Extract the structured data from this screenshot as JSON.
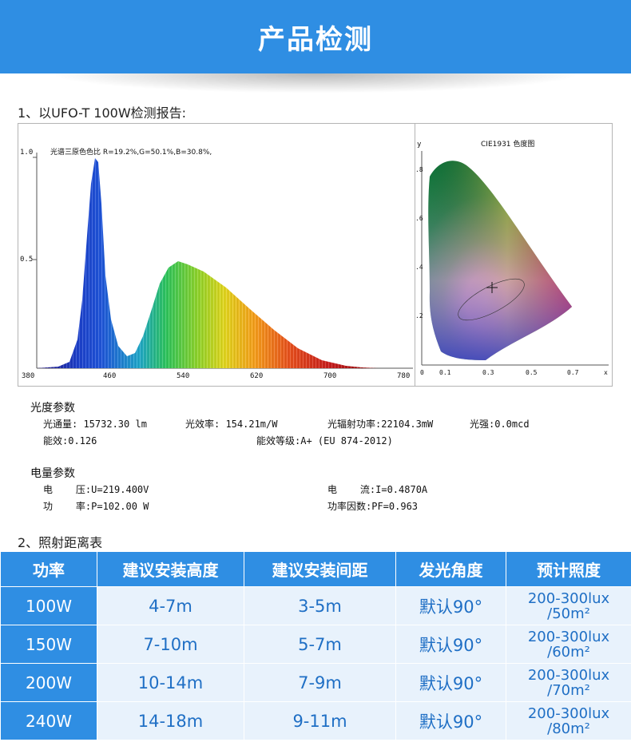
{
  "banner": {
    "title": "产品检测"
  },
  "section1": {
    "title": "1、以UFO-T 100W检测报告:"
  },
  "spectrum": {
    "ytick_1": "1.0",
    "ytick_05": "0.5",
    "header": "光谱三原色色比  R=19.2%,G=50.1%,B=30.8%,",
    "xticks": [
      "380",
      "460",
      "540",
      "620",
      "700",
      "780"
    ]
  },
  "cie": {
    "title": "CIE1931 色度图",
    "y_axis": "y",
    "x_axis": "x",
    "yticks": [
      ".8",
      ".6",
      ".4",
      ".2"
    ],
    "xticks": [
      "0",
      "0.1",
      "0.3",
      "0.5",
      "0.7"
    ]
  },
  "photometric": {
    "heading": "光度参数",
    "luminous_flux": "光通量: 15732.30 lm",
    "efficacy": "光效率: 154.21m/W",
    "radiant_power": "光辐射功率:22104.3mW",
    "intensity": "光强:0.0mcd",
    "energy_efficiency": "能效:0.126",
    "efficiency_grade": "能效等级:A+ (EU 874-2012)"
  },
  "electrical": {
    "heading": "电量参数",
    "voltage": "电    压:U=219.400V",
    "current": "电    流:I=0.4870A",
    "power": "功    率:P=102.00 W",
    "power_factor": "功率因数:PF=0.963"
  },
  "section2": {
    "title": "2、照射距离表"
  },
  "distance_table": {
    "headers": [
      "功率",
      "建议安装高度",
      "建议安装间距",
      "发光角度",
      "预计照度"
    ],
    "rows": [
      {
        "power": "100W",
        "height": "4-7m",
        "spacing": "3-5m",
        "angle": "默认90°",
        "lux_1": "200-300lux",
        "lux_2": "/50m²"
      },
      {
        "power": "150W",
        "height": "7-10m",
        "spacing": "5-7m",
        "angle": "默认90°",
        "lux_1": "200-300lux",
        "lux_2": "/60m²"
      },
      {
        "power": "200W",
        "height": "10-14m",
        "spacing": "7-9m",
        "angle": "默认90°",
        "lux_1": "200-300lux",
        "lux_2": "/70m²"
      },
      {
        "power": "240W",
        "height": "14-18m",
        "spacing": "9-11m",
        "angle": "默认90°",
        "lux_1": "200-300lux",
        "lux_2": "/80m²"
      }
    ]
  }
}
